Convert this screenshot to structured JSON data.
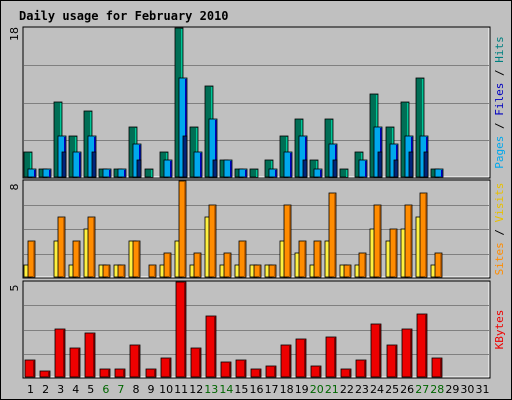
{
  "chart_data": {
    "type": "bar",
    "title": "Daily usage for February 2010",
    "x": [
      "1",
      "2",
      "3",
      "4",
      "5",
      "6",
      "7",
      "8",
      "9",
      "10",
      "11",
      "12",
      "13",
      "14",
      "15",
      "16",
      "17",
      "18",
      "19",
      "20",
      "21",
      "22",
      "23",
      "24",
      "25",
      "26",
      "27",
      "28",
      "29",
      "30",
      "31"
    ],
    "weekend_days": [
      6,
      7,
      13,
      14,
      20,
      21,
      27,
      28
    ],
    "colors": {
      "title": "#0000aa",
      "weekday_label": "#000000",
      "weekend_label": "#006600",
      "hits": "#006e55",
      "hits_side": "#00c596",
      "files": "#00a8ec",
      "files_side": "#0000c0",
      "pages": "#00247a",
      "visits": "#fff040",
      "visits_side": "#c8a000",
      "sites": "#ff8c00",
      "sites_side": "#c86400",
      "kbytes": "#ee0000",
      "kbytes_side": "#880000"
    },
    "panels": [
      {
        "id": "hits-files-pages",
        "ymax": 18,
        "ymax_label": "18",
        "side_label": [
          "Pages",
          "/",
          "Files",
          "/",
          "Hits"
        ],
        "side_colors": [
          "#00a8ec",
          "#000000",
          "#0000c0",
          "#000000",
          "#008080"
        ],
        "series": [
          {
            "name": "Hits",
            "values": [
              3,
              1,
              9,
              5,
              8,
              1,
              1,
              6,
              1,
              3,
              18,
              6,
              11,
              2,
              1,
              1,
              2,
              5,
              7,
              2,
              7,
              1,
              3,
              10,
              6,
              9,
              12,
              1,
              0,
              0,
              0
            ]
          },
          {
            "name": "Files",
            "values": [
              1,
              1,
              5,
              3,
              5,
              1,
              1,
              4,
              0,
              2,
              12,
              3,
              7,
              2,
              1,
              0,
              1,
              3,
              5,
              1,
              4,
              0,
              2,
              6,
              4,
              5,
              5,
              1,
              0,
              0,
              0
            ]
          },
          {
            "name": "Pages",
            "values": [
              0,
              0,
              3,
              0,
              3,
              0,
              0,
              2,
              0,
              0,
              5,
              0,
              2,
              0,
              0,
              0,
              0,
              0,
              2,
              0,
              2,
              0,
              0,
              3,
              2,
              3,
              3,
              0,
              0,
              0,
              0
            ]
          }
        ]
      },
      {
        "id": "visits-sites",
        "ymax": 8,
        "ymax_label": "8",
        "side_label": [
          "Sites",
          "/",
          "Visits"
        ],
        "side_colors": [
          "#ff8c00",
          "#000000",
          "#e8c000"
        ],
        "series": [
          {
            "name": "Visits",
            "values": [
              1,
              0,
              3,
              1,
              4,
              1,
              1,
              3,
              0,
              1,
              3,
              1,
              5,
              1,
              1,
              1,
              1,
              3,
              2,
              1,
              3,
              1,
              1,
              4,
              3,
              4,
              5,
              1,
              0,
              0,
              0
            ]
          },
          {
            "name": "Sites",
            "values": [
              3,
              0,
              5,
              3,
              5,
              1,
              1,
              3,
              1,
              2,
              8,
              2,
              6,
              2,
              3,
              1,
              1,
              6,
              3,
              3,
              7,
              1,
              2,
              6,
              4,
              6,
              7,
              2,
              0,
              0,
              0
            ]
          }
        ]
      },
      {
        "id": "kbytes",
        "ymax": 5,
        "ymax_label": "5",
        "side_label": [
          "KBytes"
        ],
        "side_colors": [
          "#ee0000"
        ],
        "series": [
          {
            "name": "KBytes",
            "values": [
              0.9,
              0.3,
              2.5,
              1.5,
              2.3,
              0.4,
              0.4,
              1.7,
              0.4,
              1.0,
              5.0,
              1.5,
              3.2,
              0.8,
              0.9,
              0.4,
              0.6,
              1.7,
              2.0,
              0.6,
              2.1,
              0.4,
              0.9,
              2.8,
              1.7,
              2.5,
              3.3,
              1.0,
              0,
              0,
              0
            ]
          }
        ]
      }
    ]
  }
}
